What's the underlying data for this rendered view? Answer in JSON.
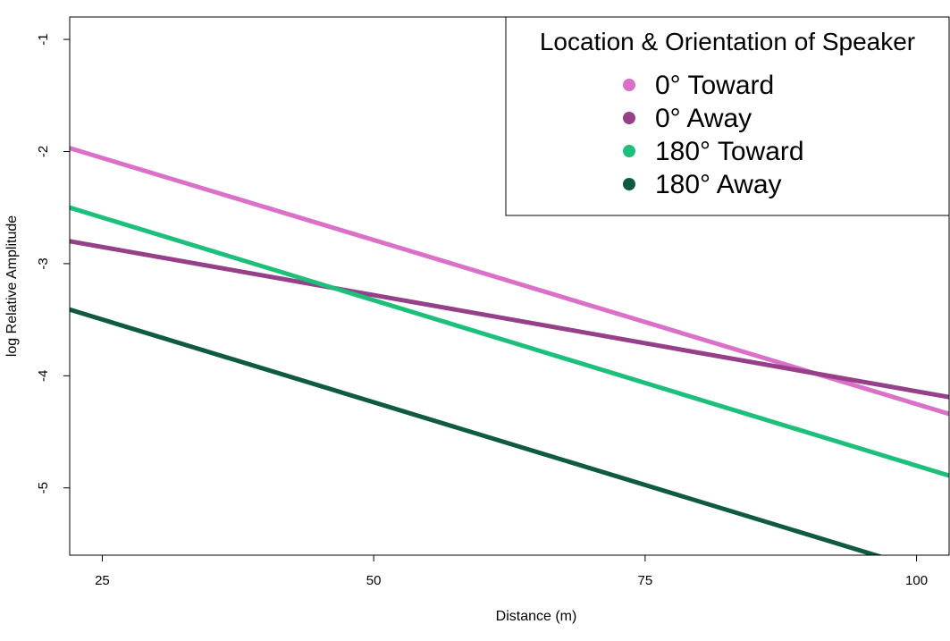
{
  "chart_data": {
    "type": "line",
    "title": "",
    "xlabel": "Distance (m)",
    "ylabel": "log Relative Amplitude",
    "xlim": [
      22,
      103
    ],
    "ylim": [
      -5.6,
      -0.8
    ],
    "x_ticks": [
      25,
      50,
      75,
      100
    ],
    "y_ticks": [
      -1,
      -2,
      -3,
      -4,
      -5
    ],
    "grid": false,
    "legend": {
      "title": "Location & Orientation of Speaker",
      "placement": "top-right"
    },
    "series": [
      {
        "name": "0° Toward",
        "color": "#DA70C8",
        "x": [
          22,
          103
        ],
        "y": [
          -1.97,
          -4.34
        ]
      },
      {
        "name": "0° Away",
        "color": "#96408A",
        "x": [
          22,
          103
        ],
        "y": [
          -2.8,
          -4.19
        ]
      },
      {
        "name": "180° Toward",
        "color": "#1DC07A",
        "x": [
          22,
          103
        ],
        "y": [
          -2.5,
          -4.89
        ]
      },
      {
        "name": "180° Away",
        "color": "#0F5B3F",
        "x": [
          22,
          103
        ],
        "y": [
          -3.41,
          -5.8
        ]
      }
    ]
  }
}
